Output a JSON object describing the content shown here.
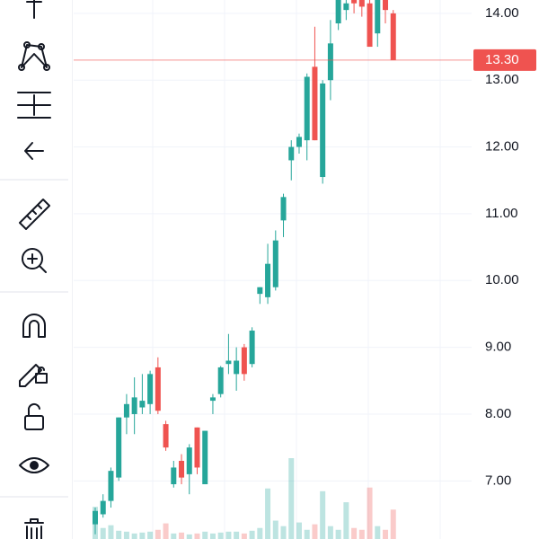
{
  "chart_data": {
    "type": "candlestick",
    "up_color": "#26a69a",
    "down_color": "#ef5350",
    "open": [
      6.35,
      6.5,
      6.7,
      7.05,
      7.95,
      8.0,
      8.1,
      8.15,
      8.7,
      7.85,
      6.95,
      7.3,
      7.1,
      7.8,
      6.95,
      8.2,
      8.3,
      8.75,
      8.6,
      9.0,
      8.75,
      9.8,
      9.75,
      9.9,
      10.9,
      11.8,
      12.0,
      12.1,
      13.2,
      11.55,
      13.0,
      13.85,
      14.05,
      14.2,
      14.2,
      14.15,
      13.7,
      14.2,
      14.0
    ],
    "high": [
      6.6,
      6.8,
      7.2,
      7.95,
      8.3,
      8.55,
      8.6,
      8.65,
      8.85,
      7.9,
      7.3,
      7.4,
      7.55,
      7.8,
      7.75,
      8.3,
      8.72,
      9.2,
      9.0,
      9.05,
      9.3,
      9.9,
      10.55,
      10.75,
      11.3,
      12.1,
      12.2,
      13.1,
      13.8,
      13.0,
      13.9,
      14.2,
      14.2,
      14.2,
      14.2,
      14.2,
      14.2,
      14.2,
      14.05
    ],
    "low": [
      6.2,
      6.45,
      6.6,
      7.0,
      7.7,
      7.7,
      8.0,
      8.0,
      8.0,
      7.45,
      6.9,
      6.95,
      6.8,
      7.1,
      6.95,
      8.0,
      8.25,
      8.6,
      8.35,
      8.5,
      8.7,
      9.65,
      9.65,
      9.85,
      10.65,
      11.5,
      11.9,
      11.8,
      12.1,
      11.45,
      12.7,
      13.75,
      13.9,
      14.0,
      13.95,
      13.5,
      13.5,
      13.85,
      13.3
    ],
    "close": [
      6.55,
      6.7,
      7.15,
      7.95,
      8.15,
      8.25,
      8.2,
      8.6,
      8.05,
      7.5,
      7.2,
      7.05,
      7.5,
      7.2,
      7.75,
      8.25,
      8.7,
      8.8,
      8.8,
      8.6,
      9.25,
      9.9,
      10.25,
      10.6,
      11.25,
      12.0,
      12.15,
      13.05,
      12.1,
      12.95,
      13.55,
      14.2,
      14.15,
      14.15,
      14.1,
      13.5,
      14.2,
      14.05,
      13.3
    ],
    "volume": [
      35,
      12,
      15,
      9,
      8,
      6,
      7,
      8,
      10,
      17,
      6,
      7,
      5,
      6,
      8,
      6,
      7,
      8,
      8,
      6,
      9,
      12,
      55,
      20,
      14,
      88,
      18,
      10,
      16,
      52,
      14,
      10,
      40,
      12,
      10,
      56,
      14,
      10,
      32
    ],
    "ylim": [
      6.13,
      14.2
    ],
    "yticks": [
      {
        "value": 7,
        "label": "7.00"
      },
      {
        "value": 8,
        "label": "8.00"
      },
      {
        "value": 9,
        "label": "9.00"
      },
      {
        "value": 10,
        "label": "10.00"
      },
      {
        "value": 11,
        "label": "11.00"
      },
      {
        "value": 12,
        "label": "12.00"
      },
      {
        "value": 13,
        "label": "13.00"
      },
      {
        "value": 14,
        "label": "14.00"
      }
    ],
    "grid": true,
    "current_price": {
      "value": 13.3,
      "label": "13.30"
    }
  }
}
